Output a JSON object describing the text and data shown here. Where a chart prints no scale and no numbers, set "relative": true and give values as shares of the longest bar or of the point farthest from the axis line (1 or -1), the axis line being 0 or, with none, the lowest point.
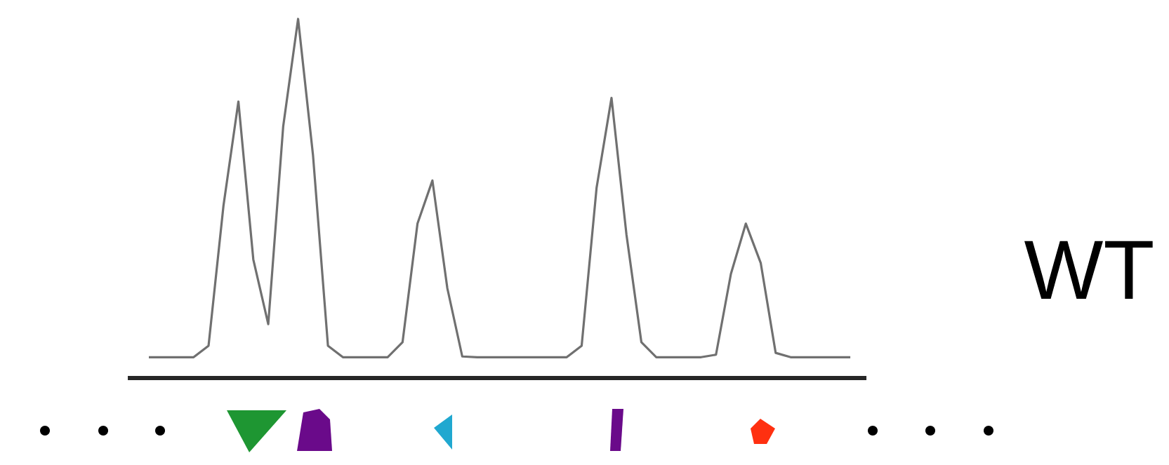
{
  "chart_data": {
    "type": "line",
    "relative": true,
    "categories": [
      null,
      null,
      null,
      null,
      null,
      null,
      null,
      null,
      null,
      null,
      null,
      null,
      null,
      null,
      null,
      null,
      null,
      null,
      null,
      null,
      null,
      null,
      null,
      null,
      null,
      null,
      null,
      null,
      null,
      null,
      null,
      null,
      null,
      null,
      null,
      null,
      null,
      null,
      null,
      null,
      null,
      null,
      null,
      null,
      null,
      null,
      null,
      null
    ],
    "series": [
      {
        "name": "WT",
        "color": "#707070",
        "values": [
          0.058,
          0.058,
          0.058,
          0.058,
          0.09,
          0.48,
          0.77,
          0.33,
          0.15,
          0.7,
          1,
          0.62,
          0.09,
          0.058,
          0.058,
          0.058,
          0.058,
          0.1,
          0.43,
          0.55,
          0.25,
          0.06,
          0.058,
          0.058,
          0.058,
          0.058,
          0.058,
          0.058,
          0.058,
          0.09,
          0.53,
          0.78,
          0.4,
          0.1,
          0.058,
          0.058,
          0.058,
          0.058,
          0.065,
          0.29,
          0.43,
          0.32,
          0.07,
          0.058,
          0.058,
          0.058,
          0.058,
          0.058
        ]
      }
    ]
  }
}
